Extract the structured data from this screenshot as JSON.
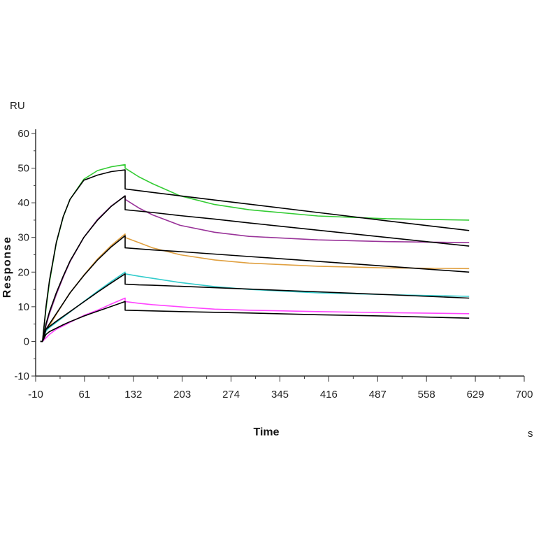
{
  "chart_data": {
    "type": "line",
    "title": "",
    "xlabel": "Time",
    "xunit": "s",
    "ylabel": "Response",
    "yunit": "RU",
    "xlim": [
      -10,
      700
    ],
    "ylim": [
      -10,
      60
    ],
    "xticks": [
      -10,
      61,
      132,
      203,
      274,
      345,
      416,
      487,
      558,
      629,
      700
    ],
    "yticks": [
      -10,
      0,
      10,
      20,
      30,
      40,
      50,
      60
    ],
    "grid": false,
    "legend": "none",
    "series": [
      {
        "color": "#33cc33",
        "x": [
          0,
          5,
          10,
          20,
          30,
          40,
          60,
          80,
          100,
          120,
          120,
          140,
          160,
          200,
          250,
          300,
          400,
          500,
          620
        ],
        "y": [
          0,
          9.3,
          17,
          28.3,
          35.9,
          41,
          46.8,
          49.3,
          50.4,
          51,
          50,
          47.5,
          45.5,
          42,
          39.5,
          38,
          36.2,
          35.4,
          35
        ]
      },
      {
        "color": "#993399",
        "x": [
          0,
          5,
          10,
          20,
          30,
          40,
          60,
          80,
          100,
          120,
          120,
          140,
          160,
          200,
          250,
          300,
          400,
          500,
          620
        ],
        "y": [
          0,
          4.5,
          8,
          13.5,
          18.5,
          23,
          30,
          35.2,
          39.1,
          42,
          41,
          38.5,
          36.5,
          33.5,
          31.5,
          30.3,
          29.3,
          28.8,
          28.5
        ]
      },
      {
        "color": "#e0a040",
        "x": [
          0,
          5,
          10,
          20,
          30,
          40,
          60,
          80,
          100,
          120,
          120,
          140,
          160,
          200,
          250,
          300,
          400,
          500,
          620
        ],
        "y": [
          0,
          3,
          4.5,
          7.8,
          11,
          14,
          19.1,
          23.8,
          27.7,
          31,
          30,
          28.5,
          27,
          25,
          23.5,
          22.6,
          21.7,
          21.2,
          21
        ]
      },
      {
        "color": "#33cccc",
        "x": [
          0,
          5,
          10,
          20,
          30,
          40,
          60,
          80,
          100,
          120,
          120,
          140,
          160,
          200,
          250,
          300,
          400,
          500,
          620
        ],
        "y": [
          0,
          3,
          4,
          5.5,
          7,
          8.5,
          11.5,
          14.5,
          17.3,
          20,
          19.5,
          18.8,
          18.2,
          17,
          15.8,
          15,
          14,
          13.5,
          13
        ]
      },
      {
        "color": "#ff44ff",
        "x": [
          0,
          5,
          10,
          20,
          30,
          40,
          60,
          80,
          100,
          120,
          120,
          140,
          160,
          200,
          250,
          300,
          400,
          500,
          620
        ],
        "y": [
          0,
          1,
          2,
          3.5,
          4.5,
          5.5,
          7.5,
          9,
          10.8,
          12.5,
          11.5,
          11,
          10.6,
          10,
          9.3,
          9,
          8.6,
          8.3,
          8
        ]
      },
      {
        "color": "#000000",
        "x": [
          0,
          5,
          10,
          20,
          30,
          40,
          60,
          80,
          100,
          120,
          120,
          140,
          160,
          200,
          250,
          300,
          400,
          500,
          620
        ],
        "y": [
          0,
          10,
          17.5,
          28.5,
          36,
          41,
          46.5,
          48,
          49,
          49.5,
          44,
          43.5,
          43,
          42,
          40.8,
          39.6,
          37.2,
          34.8,
          32
        ]
      },
      {
        "color": "#000000",
        "x": [
          0,
          5,
          10,
          20,
          30,
          40,
          60,
          80,
          100,
          120,
          120,
          140,
          160,
          200,
          250,
          300,
          400,
          500,
          620
        ],
        "y": [
          0,
          5,
          8.5,
          14,
          18.8,
          23.2,
          30,
          35,
          39,
          42,
          38,
          37.6,
          37.2,
          36.3,
          35.3,
          34.2,
          32.1,
          30,
          27.5
        ]
      },
      {
        "color": "#000000",
        "x": [
          0,
          5,
          10,
          20,
          30,
          40,
          60,
          80,
          100,
          120,
          120,
          140,
          160,
          200,
          250,
          300,
          400,
          500,
          620
        ],
        "y": [
          0,
          3.5,
          5,
          8,
          11,
          14,
          19,
          23.5,
          27.3,
          30.5,
          27,
          26.7,
          26.4,
          25.9,
          25.2,
          24.5,
          23.1,
          21.7,
          20
        ]
      },
      {
        "color": "#000000",
        "x": [
          0,
          5,
          10,
          20,
          30,
          40,
          60,
          80,
          100,
          120,
          120,
          140,
          160,
          200,
          250,
          300,
          400,
          500,
          620
        ],
        "y": [
          0,
          3.5,
          4.3,
          5.8,
          7.2,
          8.6,
          11.4,
          14.2,
          16.9,
          19.5,
          16.5,
          16.3,
          16.2,
          15.9,
          15.5,
          15.1,
          14.3,
          13.5,
          12.5
        ]
      },
      {
        "color": "#000000",
        "x": [
          0,
          5,
          10,
          20,
          30,
          40,
          60,
          80,
          100,
          120,
          120,
          140,
          160,
          200,
          250,
          300,
          400,
          500,
          620
        ],
        "y": [
          0,
          2,
          2.8,
          3.8,
          4.8,
          5.7,
          7.3,
          8.7,
          10.1,
          11.5,
          9,
          8.9,
          8.8,
          8.6,
          8.4,
          8.2,
          7.7,
          7.3,
          6.7
        ]
      }
    ]
  }
}
